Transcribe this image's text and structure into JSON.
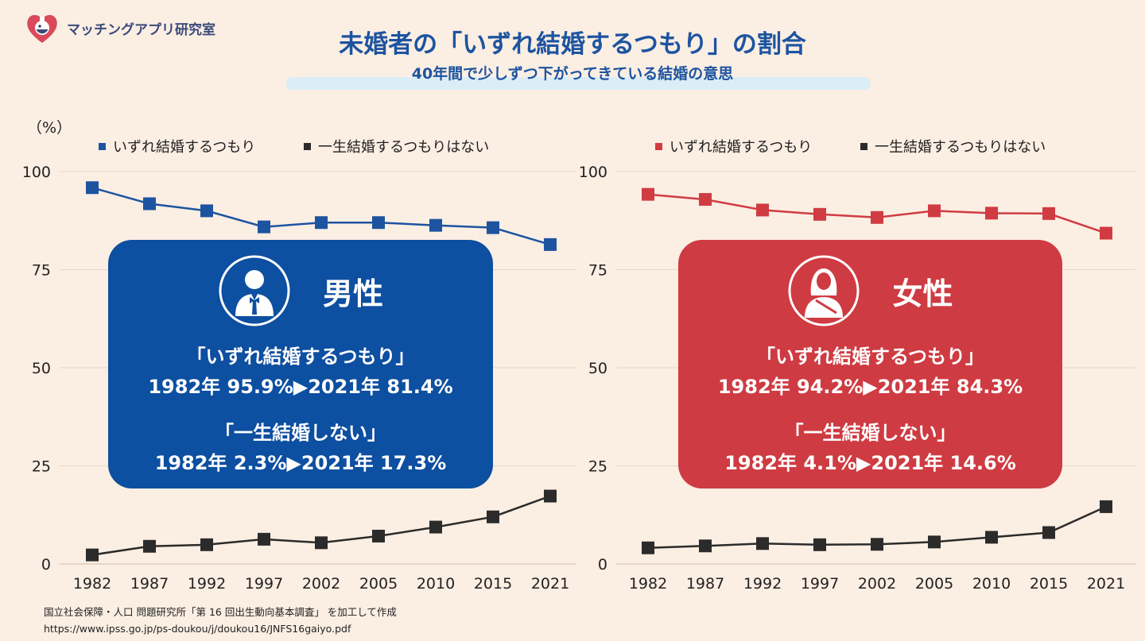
{
  "header": {
    "logo_text": "マッチングアプリ研究室",
    "title": "未婚者の「いずれ結婚するつもり」の割合",
    "subtitle": "40年間で少しずつ下がってきている結婚の意思"
  },
  "unit_label": "（%）",
  "colors": {
    "male": "#1d54a0",
    "female": "#d03c42",
    "never": "#2b2b2b",
    "background": "#fbeee3",
    "grid": "#e6d7ca"
  },
  "chart_data": [
    {
      "type": "line",
      "categories": [
        "1982",
        "1987",
        "1992",
        "1997",
        "2002",
        "2005",
        "2010",
        "2015",
        "2021"
      ],
      "ylim": [
        0,
        100
      ],
      "yticks": [
        "0",
        "25",
        "50",
        "75",
        "100"
      ],
      "series": [
        {
          "name": "いずれ結婚するつもり",
          "color": "#1d54a0",
          "values": [
            95.9,
            91.8,
            90.0,
            85.9,
            87.0,
            87.0,
            86.3,
            85.7,
            81.4
          ]
        },
        {
          "name": "一生結婚するつもりはない",
          "color": "#2b2b2b",
          "values": [
            2.3,
            4.5,
            4.9,
            6.3,
            5.4,
            7.1,
            9.4,
            12.0,
            17.3
          ]
        }
      ]
    },
    {
      "type": "line",
      "categories": [
        "1982",
        "1987",
        "1992",
        "1997",
        "2002",
        "2005",
        "2010",
        "2015",
        "2021"
      ],
      "ylim": [
        0,
        100
      ],
      "yticks": [
        "0",
        "25",
        "50",
        "75",
        "100"
      ],
      "series": [
        {
          "name": "いずれ結婚するつもり",
          "color": "#d03c42",
          "values": [
            94.2,
            92.9,
            90.2,
            89.1,
            88.3,
            90.0,
            89.4,
            89.3,
            84.3
          ]
        },
        {
          "name": "一生結婚するつもりはない",
          "color": "#2b2b2b",
          "values": [
            4.1,
            4.6,
            5.2,
            4.9,
            5.0,
            5.6,
            6.8,
            8.0,
            14.6
          ]
        }
      ]
    }
  ],
  "callouts": [
    {
      "gender": "男性",
      "label_marry": "「いずれ結婚するつもり」",
      "marry_values": "1982年 95.9%▶2021年 81.4%",
      "label_never": "「一生結婚しない」",
      "never_values": "1982年 2.3%▶2021年 17.3%"
    },
    {
      "gender": "女性",
      "label_marry": "「いずれ結婚するつもり」",
      "marry_values": "1982年 94.2%▶2021年 84.3%",
      "label_never": "「一生結婚しない」",
      "never_values": "1982年 4.1%▶2021年 14.6%"
    }
  ],
  "source": {
    "line1": "国立社会保障・人口 問題研究所「第 16 回出生動向基本調査」 を加工して作成",
    "line2": "https://www.ipss.go.jp/ps-doukou/j/doukou16/JNFS16gaiyo.pdf"
  }
}
